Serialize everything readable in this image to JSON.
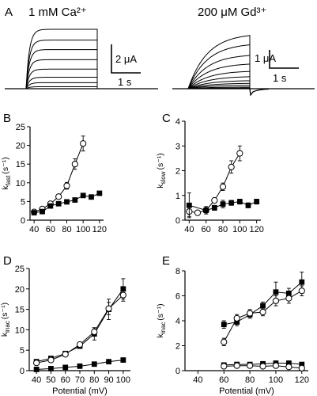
{
  "panel_labels": [
    "A",
    "B",
    "C",
    "D",
    "E"
  ],
  "traces": [
    {
      "label": "1 mM Ca²⁺",
      "scale_current": "2 μA",
      "scale_time": "1 s",
      "steady_currents": [
        4.4,
        3.6,
        2.9,
        2.15,
        1.45,
        0.85,
        0.45,
        0.15
      ]
    },
    {
      "label": "200 μM Gd³⁺",
      "scale_current": "1 μA",
      "scale_time": "1 s",
      "steady_currents": [
        4.0,
        3.3,
        2.5,
        1.85,
        1.3,
        0.9,
        0.6,
        0.4,
        0.25,
        0.12,
        0.05
      ]
    }
  ],
  "chart_data": [
    {
      "panel": "B",
      "type": "scatter",
      "ylabel": "k",
      "ylabel_sub": "fast",
      "ylabel_unit": "(s⁻¹)",
      "xlabel": "",
      "xlim": [
        35,
        125
      ],
      "ylim": [
        0,
        25
      ],
      "xticks": [
        40,
        60,
        80,
        100,
        120
      ],
      "yticks": [
        0,
        5,
        10,
        15,
        20,
        25
      ],
      "series": [
        {
          "marker": "open-circle",
          "x": [
            40,
            50,
            60,
            70,
            80,
            90,
            100
          ],
          "y": [
            2.2,
            3.0,
            4.4,
            6.3,
            9.2,
            15.0,
            20.5
          ],
          "err": [
            0.4,
            0.3,
            0.3,
            0.4,
            0.9,
            1.4,
            2.0
          ]
        },
        {
          "marker": "filled-square",
          "x": [
            40,
            50,
            60,
            70,
            80,
            90,
            100,
            110,
            120
          ],
          "y": [
            2.0,
            2.3,
            3.8,
            4.4,
            4.9,
            5.4,
            6.6,
            6.2,
            7.2
          ],
          "err": [
            0.3,
            0.3,
            0.3,
            0.3,
            0.3,
            0.4,
            0.4,
            0.4,
            0.5
          ]
        }
      ]
    },
    {
      "panel": "C",
      "type": "scatter",
      "ylabel": "k",
      "ylabel_sub": "slow",
      "ylabel_unit": "(s⁻¹)",
      "xlabel": "",
      "xlim": [
        35,
        125
      ],
      "ylim": [
        0,
        4
      ],
      "xticks": [
        40,
        60,
        80,
        100,
        120
      ],
      "yticks": [
        0,
        1,
        2,
        3,
        4
      ],
      "series": [
        {
          "marker": "open-circle",
          "x": [
            40,
            50,
            60,
            70,
            80,
            90,
            100
          ],
          "y": [
            0.35,
            0.3,
            0.4,
            0.8,
            1.35,
            2.15,
            2.7
          ],
          "err": [
            0.2,
            0.1,
            0.1,
            0.1,
            0.15,
            0.25,
            0.3
          ]
        },
        {
          "marker": "filled-square",
          "x": [
            40,
            60,
            70,
            80,
            90,
            100,
            110,
            120
          ],
          "y": [
            0.6,
            0.4,
            0.5,
            0.65,
            0.7,
            0.75,
            0.6,
            0.75
          ],
          "err": [
            0.5,
            0.15,
            0.1,
            0.15,
            0.1,
            0.1,
            0.1,
            0.1
          ]
        }
      ]
    },
    {
      "panel": "D",
      "type": "scatter",
      "ylabel": "k",
      "ylabel_sub": "inac",
      "ylabel_unit": "(s⁻¹)",
      "xlabel": "Potential (mV)",
      "xlim": [
        35,
        105
      ],
      "ylim": [
        0,
        25
      ],
      "xticks": [
        40,
        50,
        60,
        70,
        80,
        90,
        100
      ],
      "yticks": [
        0,
        5,
        10,
        15,
        20,
        25
      ],
      "series": [
        {
          "marker": "filled-square",
          "x": [
            40,
            50,
            60,
            70,
            80,
            90,
            100
          ],
          "y": [
            2.2,
            3.0,
            4.2,
            6.0,
            9.0,
            15.0,
            20.0
          ],
          "err": [
            0.3,
            0.3,
            0.3,
            0.5,
            1.5,
            2.5,
            2.5
          ]
        },
        {
          "marker": "open-circle",
          "x": [
            40,
            50,
            60,
            70,
            80,
            90,
            100
          ],
          "y": [
            1.9,
            2.6,
            4.0,
            6.4,
            9.5,
            15.2,
            18.5
          ],
          "err": [
            0.3,
            0.3,
            0.3,
            0.5,
            1.0,
            1.5,
            1.5
          ]
        },
        {
          "marker": "filled-square",
          "x": [
            40,
            50,
            60,
            70,
            80,
            90,
            100
          ],
          "y": [
            0.3,
            0.5,
            0.8,
            1.1,
            1.6,
            2.2,
            2.6
          ],
          "err": [
            0.1,
            0.1,
            0.1,
            0.1,
            0.2,
            0.3,
            0.3
          ]
        }
      ]
    },
    {
      "panel": "E",
      "type": "scatter",
      "ylabel": "k",
      "ylabel_sub": "inac",
      "ylabel_unit": "(s⁻¹)",
      "xlabel": "Potential (mV)",
      "xlim": [
        30,
        125
      ],
      "ylim": [
        0,
        8
      ],
      "xticks": [
        40,
        60,
        80,
        100,
        120
      ],
      "yticks": [
        0,
        2,
        4,
        6,
        8
      ],
      "series": [
        {
          "marker": "filled-square",
          "x": [
            60,
            70,
            80,
            90,
            100,
            110,
            120
          ],
          "y": [
            3.7,
            3.9,
            4.5,
            5.2,
            6.3,
            6.2,
            7.1
          ],
          "err": [
            0.3,
            0.3,
            0.3,
            0.3,
            0.8,
            0.4,
            0.8
          ]
        },
        {
          "marker": "open-circle",
          "x": [
            60,
            70,
            80,
            90,
            100,
            110,
            120
          ],
          "y": [
            2.3,
            4.2,
            4.6,
            4.7,
            5.6,
            5.8,
            6.4
          ],
          "err": [
            0.3,
            0.3,
            0.3,
            0.3,
            0.4,
            0.4,
            0.4
          ]
        },
        {
          "marker": "filled-square",
          "x": [
            60,
            70,
            80,
            90,
            100,
            110,
            120
          ],
          "y": [
            0.45,
            0.5,
            0.5,
            0.55,
            0.6,
            0.6,
            0.5
          ],
          "err": [
            0.1,
            0.1,
            0.1,
            0.1,
            0.1,
            0.1,
            0.1
          ]
        },
        {
          "marker": "open-circle",
          "x": [
            60,
            70,
            80,
            90,
            100,
            110,
            120
          ],
          "y": [
            0.35,
            0.4,
            0.4,
            0.35,
            0.4,
            0.3,
            0.2
          ],
          "err": [
            0.1,
            0.1,
            0.1,
            0.1,
            0.1,
            0.1,
            0.1
          ]
        }
      ]
    }
  ]
}
